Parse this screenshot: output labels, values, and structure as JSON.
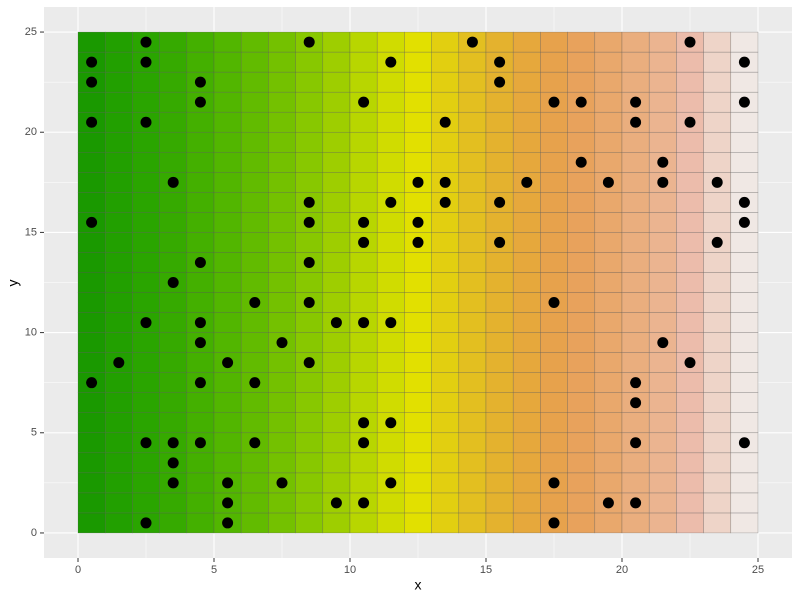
{
  "chart_data": {
    "type": "scatter",
    "x_label": "x",
    "y_label": "y",
    "xlim": [
      -1.25,
      26.25
    ],
    "ylim": [
      -1.25,
      26.25
    ],
    "xticks": [
      0,
      5,
      10,
      15,
      20,
      25
    ],
    "yticks": [
      0,
      5,
      10,
      15,
      20,
      25
    ],
    "grid": true,
    "point_color": "#000000",
    "tile_colors": [
      "#1a9900",
      "#22a000",
      "#2aa500",
      "#36aa00",
      "#44b000",
      "#52b600",
      "#62bb00",
      "#74c100",
      "#88c800",
      "#9ece00",
      "#b8d600",
      "#d0dc00",
      "#e2e000",
      "#e2cf10",
      "#e3bf20",
      "#e4b22e",
      "#e6a83c",
      "#e7a24c",
      "#e8a25c",
      "#e9a86c",
      "#eaae7e",
      "#ebb490",
      "#ecbcab",
      "#eed4c8",
      "#f0e8e4"
    ],
    "x": [
      2.5,
      8.5,
      14.5,
      22.5,
      0.5,
      2.5,
      11.5,
      15.5,
      24.5,
      0.5,
      4.5,
      15.5,
      4.5,
      10.5,
      17.5,
      18.5,
      20.5,
      24.5,
      0.5,
      2.5,
      13.5,
      20.5,
      22.5,
      18.5,
      21.5,
      3.5,
      12.5,
      13.5,
      16.5,
      19.5,
      21.5,
      23.5,
      8.5,
      11.5,
      13.5,
      15.5,
      24.5,
      0.5,
      8.5,
      10.5,
      12.5,
      24.5,
      10.5,
      12.5,
      15.5,
      23.5,
      4.5,
      8.5,
      3.5,
      6.5,
      8.5,
      17.5,
      2.5,
      4.5,
      9.5,
      10.5,
      11.5,
      4.5,
      7.5,
      21.5,
      1.5,
      5.5,
      8.5,
      22.5,
      0.5,
      4.5,
      6.5,
      20.5,
      20.5,
      10.5,
      11.5,
      2.5,
      3.5,
      4.5,
      6.5,
      10.5,
      20.5,
      24.5,
      3.5,
      3.5,
      5.5,
      7.5,
      11.5,
      17.5,
      5.5,
      9.5,
      10.5,
      19.5,
      20.5,
      2.5,
      5.5,
      17.5
    ],
    "y": [
      24.5,
      24.5,
      24.5,
      24.5,
      23.5,
      23.5,
      23.5,
      23.5,
      23.5,
      22.5,
      22.5,
      22.5,
      21.5,
      21.5,
      21.5,
      21.5,
      21.5,
      21.5,
      20.5,
      20.5,
      20.5,
      20.5,
      20.5,
      18.5,
      18.5,
      17.5,
      17.5,
      17.5,
      17.5,
      17.5,
      17.5,
      17.5,
      16.5,
      16.5,
      16.5,
      16.5,
      16.5,
      15.5,
      15.5,
      15.5,
      15.5,
      15.5,
      14.5,
      14.5,
      14.5,
      14.5,
      13.5,
      13.5,
      12.5,
      11.5,
      11.5,
      11.5,
      10.5,
      10.5,
      10.5,
      10.5,
      10.5,
      9.5,
      9.5,
      9.5,
      8.5,
      8.5,
      8.5,
      8.5,
      7.5,
      7.5,
      7.5,
      7.5,
      6.5,
      5.5,
      5.5,
      4.5,
      4.5,
      4.5,
      4.5,
      4.5,
      4.5,
      4.5,
      3.5,
      2.5,
      2.5,
      2.5,
      2.5,
      2.5,
      1.5,
      1.5,
      1.5,
      1.5,
      1.5,
      0.5,
      0.5,
      0.5
    ]
  }
}
